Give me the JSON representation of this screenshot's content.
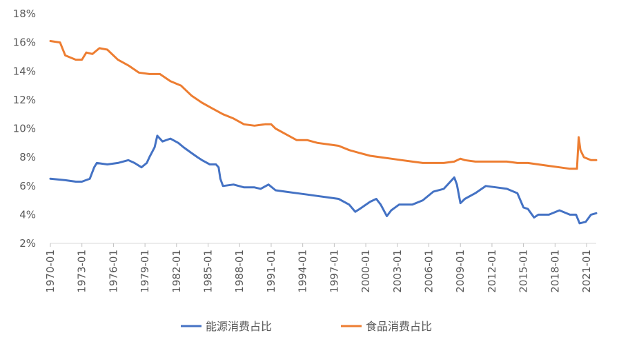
{
  "chart_data": {
    "type": "line",
    "title": "",
    "xlabel": "",
    "ylabel": "",
    "x_range": [
      "1970-01",
      "2021-12"
    ],
    "ylim": [
      2,
      18
    ],
    "y_ticks": [
      2,
      4,
      6,
      8,
      10,
      12,
      14,
      16,
      18
    ],
    "y_tick_labels": [
      "2%",
      "4%",
      "6%",
      "8%",
      "10%",
      "12%",
      "14%",
      "16%",
      "18%"
    ],
    "x_tick_labels": [
      "1970-01",
      "1973-01",
      "1976-01",
      "1979-01",
      "1982-01",
      "1985-01",
      "1988-01",
      "1991-01",
      "1994-01",
      "1997-01",
      "2000-01",
      "2003-01",
      "2006-01",
      "2009-01",
      "2012-01",
      "2015-01",
      "2018-01",
      "2021-01"
    ],
    "grid": false,
    "legend_position": "bottom",
    "series": [
      {
        "name": "能源消费占比",
        "color": "#4472C4",
        "points": [
          [
            "1970-01",
            6.5
          ],
          [
            "1971-06",
            6.4
          ],
          [
            "1972-06",
            6.3
          ],
          [
            "1973-01",
            6.3
          ],
          [
            "1973-10",
            6.5
          ],
          [
            "1974-03",
            7.3
          ],
          [
            "1974-06",
            7.6
          ],
          [
            "1975-06",
            7.5
          ],
          [
            "1976-06",
            7.6
          ],
          [
            "1977-06",
            7.8
          ],
          [
            "1978-01",
            7.6
          ],
          [
            "1978-09",
            7.3
          ],
          [
            "1979-03",
            7.6
          ],
          [
            "1979-06",
            8.0
          ],
          [
            "1979-12",
            8.7
          ],
          [
            "1980-03",
            9.5
          ],
          [
            "1980-09",
            9.1
          ],
          [
            "1981-06",
            9.3
          ],
          [
            "1982-03",
            9.0
          ],
          [
            "1982-09",
            8.7
          ],
          [
            "1983-06",
            8.3
          ],
          [
            "1984-01",
            8.0
          ],
          [
            "1984-06",
            7.8
          ],
          [
            "1985-03",
            7.5
          ],
          [
            "1985-10",
            7.5
          ],
          [
            "1986-01",
            7.3
          ],
          [
            "1986-03",
            6.5
          ],
          [
            "1986-06",
            6.0
          ],
          [
            "1987-06",
            6.1
          ],
          [
            "1988-06",
            5.9
          ],
          [
            "1989-06",
            5.9
          ],
          [
            "1990-01",
            5.8
          ],
          [
            "1990-10",
            6.1
          ],
          [
            "1991-06",
            5.7
          ],
          [
            "1992-06",
            5.6
          ],
          [
            "1993-06",
            5.5
          ],
          [
            "1994-06",
            5.4
          ],
          [
            "1995-06",
            5.3
          ],
          [
            "1996-06",
            5.2
          ],
          [
            "1997-06",
            5.1
          ],
          [
            "1998-06",
            4.7
          ],
          [
            "1999-01",
            4.2
          ],
          [
            "1999-06",
            4.4
          ],
          [
            "2000-06",
            4.9
          ],
          [
            "2001-01",
            5.1
          ],
          [
            "2001-06",
            4.7
          ],
          [
            "2002-01",
            3.9
          ],
          [
            "2002-06",
            4.3
          ],
          [
            "2003-03",
            4.7
          ],
          [
            "2004-06",
            4.7
          ],
          [
            "2005-06",
            5.0
          ],
          [
            "2006-06",
            5.6
          ],
          [
            "2007-06",
            5.8
          ],
          [
            "2008-06",
            6.6
          ],
          [
            "2008-09",
            6.1
          ],
          [
            "2009-01",
            4.8
          ],
          [
            "2009-06",
            5.1
          ],
          [
            "2010-06",
            5.5
          ],
          [
            "2011-06",
            6.0
          ],
          [
            "2012-06",
            5.9
          ],
          [
            "2013-06",
            5.8
          ],
          [
            "2014-06",
            5.5
          ],
          [
            "2015-01",
            4.5
          ],
          [
            "2015-06",
            4.4
          ],
          [
            "2016-01",
            3.8
          ],
          [
            "2016-06",
            4.0
          ],
          [
            "2017-06",
            4.0
          ],
          [
            "2018-06",
            4.3
          ],
          [
            "2019-06",
            4.0
          ],
          [
            "2020-01",
            4.0
          ],
          [
            "2020-05",
            3.4
          ],
          [
            "2020-12",
            3.5
          ],
          [
            "2021-06",
            4.0
          ],
          [
            "2021-12",
            4.1
          ]
        ]
      },
      {
        "name": "食品消费占比",
        "color": "#ED7D31",
        "points": [
          [
            "1970-01",
            16.1
          ],
          [
            "1970-12",
            16.0
          ],
          [
            "1971-06",
            15.1
          ],
          [
            "1972-06",
            14.8
          ],
          [
            "1973-01",
            14.8
          ],
          [
            "1973-06",
            15.3
          ],
          [
            "1974-01",
            15.2
          ],
          [
            "1974-09",
            15.6
          ],
          [
            "1975-06",
            15.5
          ],
          [
            "1976-06",
            14.8
          ],
          [
            "1977-06",
            14.4
          ],
          [
            "1978-06",
            13.9
          ],
          [
            "1979-06",
            13.8
          ],
          [
            "1980-06",
            13.8
          ],
          [
            "1981-06",
            13.3
          ],
          [
            "1982-06",
            13.0
          ],
          [
            "1983-06",
            12.3
          ],
          [
            "1984-06",
            11.8
          ],
          [
            "1985-06",
            11.4
          ],
          [
            "1986-06",
            11.0
          ],
          [
            "1987-06",
            10.7
          ],
          [
            "1988-06",
            10.3
          ],
          [
            "1989-06",
            10.2
          ],
          [
            "1990-06",
            10.3
          ],
          [
            "1991-01",
            10.3
          ],
          [
            "1991-06",
            10.0
          ],
          [
            "1992-06",
            9.6
          ],
          [
            "1993-06",
            9.2
          ],
          [
            "1994-06",
            9.2
          ],
          [
            "1995-06",
            9.0
          ],
          [
            "1996-06",
            8.9
          ],
          [
            "1997-06",
            8.8
          ],
          [
            "1998-06",
            8.5
          ],
          [
            "1999-06",
            8.3
          ],
          [
            "2000-06",
            8.1
          ],
          [
            "2001-06",
            8.0
          ],
          [
            "2002-06",
            7.9
          ],
          [
            "2003-06",
            7.8
          ],
          [
            "2004-06",
            7.7
          ],
          [
            "2005-06",
            7.6
          ],
          [
            "2006-06",
            7.6
          ],
          [
            "2007-06",
            7.6
          ],
          [
            "2008-06",
            7.7
          ],
          [
            "2009-01",
            7.9
          ],
          [
            "2009-06",
            7.8
          ],
          [
            "2010-06",
            7.7
          ],
          [
            "2011-06",
            7.7
          ],
          [
            "2012-06",
            7.7
          ],
          [
            "2013-06",
            7.7
          ],
          [
            "2014-06",
            7.6
          ],
          [
            "2015-06",
            7.6
          ],
          [
            "2016-06",
            7.5
          ],
          [
            "2017-06",
            7.4
          ],
          [
            "2018-06",
            7.3
          ],
          [
            "2019-06",
            7.2
          ],
          [
            "2020-02",
            7.2
          ],
          [
            "2020-04",
            9.4
          ],
          [
            "2020-06",
            8.5
          ],
          [
            "2020-10",
            8.0
          ],
          [
            "2021-06",
            7.8
          ],
          [
            "2021-12",
            7.8
          ]
        ]
      }
    ]
  }
}
